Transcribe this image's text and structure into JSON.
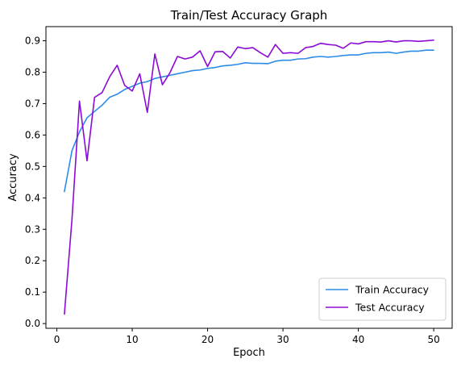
{
  "chart_data": {
    "type": "line",
    "title": "Train/Test Accuracy Graph",
    "xlabel": "Epoch",
    "ylabel": "Accuracy",
    "xlim": [
      -1.45,
      52.45
    ],
    "ylim": [
      -0.015,
      0.945
    ],
    "xticks": [
      0,
      10,
      20,
      30,
      40,
      50
    ],
    "yticks": [
      0.0,
      0.1,
      0.2,
      0.3,
      0.4,
      0.5,
      0.6,
      0.7,
      0.8,
      0.9
    ],
    "ytick_labels": [
      "0.0",
      "0.1",
      "0.2",
      "0.3",
      "0.4",
      "0.5",
      "0.6",
      "0.7",
      "0.8",
      "0.9"
    ],
    "xtick_labels": [
      "0",
      "10",
      "20",
      "30",
      "40",
      "50"
    ],
    "grid": false,
    "legend_position": "lower-right",
    "x": [
      1,
      2,
      3,
      4,
      5,
      6,
      7,
      8,
      9,
      10,
      11,
      12,
      13,
      14,
      15,
      16,
      17,
      18,
      19,
      20,
      21,
      22,
      23,
      24,
      25,
      26,
      27,
      28,
      29,
      30,
      31,
      32,
      33,
      34,
      35,
      36,
      37,
      38,
      39,
      40,
      41,
      42,
      43,
      44,
      45,
      46,
      47,
      48,
      49,
      50
    ],
    "series": [
      {
        "name": "Train Accuracy",
        "color": "#2b8ce6",
        "values": [
          0.42,
          0.55,
          0.61,
          0.655,
          0.675,
          0.695,
          0.72,
          0.73,
          0.745,
          0.755,
          0.765,
          0.77,
          0.78,
          0.785,
          0.79,
          0.795,
          0.8,
          0.805,
          0.807,
          0.812,
          0.815,
          0.82,
          0.822,
          0.825,
          0.83,
          0.828,
          0.828,
          0.827,
          0.835,
          0.838,
          0.838,
          0.842,
          0.843,
          0.848,
          0.85,
          0.848,
          0.85,
          0.853,
          0.855,
          0.855,
          0.86,
          0.862,
          0.862,
          0.864,
          0.86,
          0.864,
          0.867,
          0.867,
          0.87,
          0.87
        ]
      },
      {
        "name": "Test Accuracy",
        "color": "#8b0ad6",
        "values": [
          0.03,
          0.33,
          0.708,
          0.518,
          0.72,
          0.735,
          0.785,
          0.822,
          0.758,
          0.74,
          0.795,
          0.672,
          0.858,
          0.76,
          0.798,
          0.85,
          0.842,
          0.848,
          0.868,
          0.818,
          0.865,
          0.866,
          0.845,
          0.88,
          0.875,
          0.878,
          0.862,
          0.848,
          0.888,
          0.86,
          0.862,
          0.86,
          0.878,
          0.882,
          0.892,
          0.888,
          0.886,
          0.876,
          0.893,
          0.89,
          0.897,
          0.897,
          0.896,
          0.9,
          0.896,
          0.9,
          0.9,
          0.898,
          0.9,
          0.902
        ]
      }
    ]
  }
}
